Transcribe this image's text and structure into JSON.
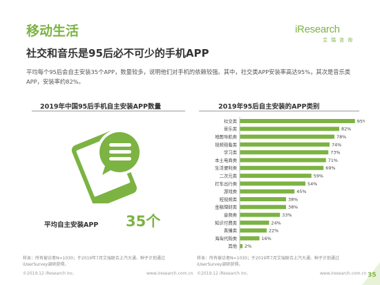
{
  "header": {
    "section_title": "移动生活",
    "headline": "社交和音乐是95后必不可少的手机APP",
    "description": "平均每个95后会自主安装35个APP，数量较多，说明他们对手机的依赖较强。其中，社交类APP安装率高达95%，其次是音乐类APP，安装率约82%。"
  },
  "logo": {
    "word_i": "i",
    "word_rest": "Research",
    "sub": "艾瑞咨询"
  },
  "left_panel": {
    "title": "2019年中国95后手机自主安装APP数量",
    "count_label": "平均自主安装APP",
    "count_value": "35个",
    "icon": "phone-chat-icon"
  },
  "chart_data": {
    "type": "bar",
    "orientation": "horizontal",
    "title": "2019年95后自主安装的APP类别",
    "categories": [
      "社交类",
      "音乐类",
      "地图导航类",
      "视频观看类",
      "学习类",
      "本土电商类",
      "生活便利类",
      "二次元类",
      "打车出行类",
      "游戏类",
      "短视频类",
      "金融理财类",
      "音频类",
      "知识付费类",
      "直播类",
      "海淘代购类",
      "其他"
    ],
    "values": [
      95,
      82,
      78,
      74,
      73,
      71,
      69,
      59,
      54,
      45,
      38,
      38,
      33,
      24,
      22,
      16,
      2
    ],
    "value_labels": [
      "95%",
      "82%",
      "78%",
      "74%",
      "73%",
      "71%",
      "69%",
      "59%",
      "54%",
      "45%",
      "38%",
      "38%",
      "33%",
      "24%",
      "22%",
      "16%",
      "2%"
    ],
    "xlim": [
      0,
      100
    ],
    "bar_color": "#7cb342",
    "grid": false
  },
  "notes": {
    "left": "样本：所有被访者N=1030；于2019年7月艾瑞联合上汽大通、种子计划通过iUserSurvey调研获得。",
    "right": "样本：所有被访者N=1030；于2019年7月艾瑞联合上汽大通、种子计划通过iUserSurvey调研获得。"
  },
  "footer": {
    "left_copyright": "©2019.12 iResearch Inc.",
    "left_url": "www.iresearch.com.cn",
    "right_copyright": "©2019.12 iResearch Inc.",
    "right_url": "www.iresearch.com.cn",
    "page_number": "35"
  },
  "colors": {
    "accent": "#7cb342",
    "text": "#333333",
    "muted": "#888888"
  }
}
